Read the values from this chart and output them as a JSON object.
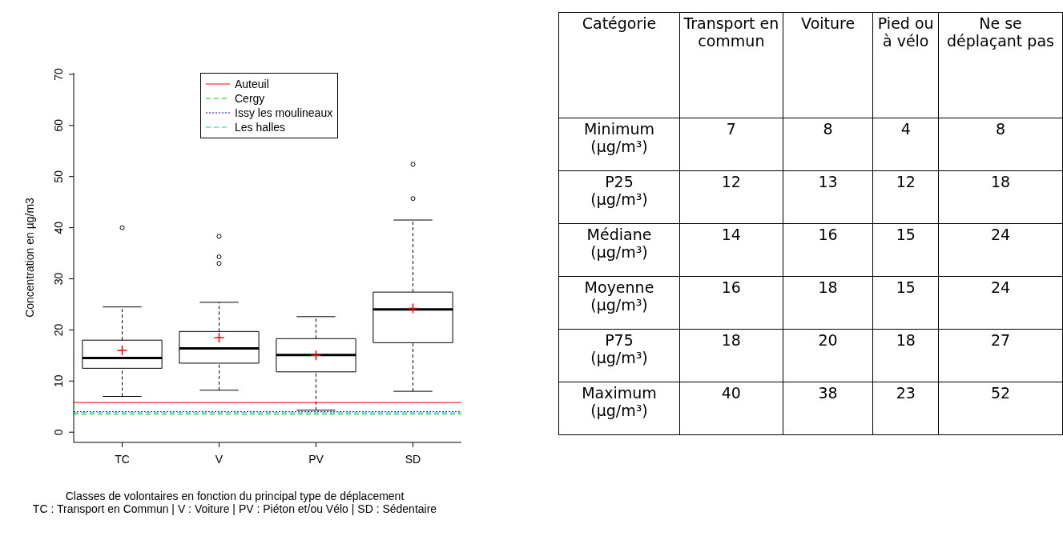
{
  "chart_data": [
    {
      "type": "box",
      "categories": [
        "TC",
        "V",
        "PV",
        "SD"
      ],
      "boxes": [
        {
          "low": 7,
          "q1": 12.5,
          "median": 14.5,
          "q3": 18,
          "high": 24.5,
          "mean": 16,
          "outliers": [
            40
          ]
        },
        {
          "low": 8.2,
          "q1": 13.5,
          "median": 16.4,
          "q3": 19.7,
          "high": 25.4,
          "mean": 18.5,
          "outliers": [
            33,
            34.3,
            38.3
          ]
        },
        {
          "low": 4.3,
          "q1": 11.8,
          "median": 15.1,
          "q3": 18.3,
          "high": 22.6,
          "mean": 15
        },
        {
          "low": 8,
          "q1": 17.5,
          "median": 24,
          "q3": 27.4,
          "high": 41.5,
          "mean": 24.2,
          "outliers": [
            45.7,
            52.4
          ]
        }
      ],
      "ylim": [
        -2,
        70.3
      ],
      "yticks": [
        0,
        10,
        20,
        30,
        40,
        50,
        60,
        70
      ],
      "ylabel": "Concentration en µg/m3",
      "xlabel": "Classes de volontaires en fonction du principal type de déplacement",
      "annotations": [
        "TC : Transport en Commun | V : Voiture | PV : Piéton et/ou Vélo | SD : Sédentaire"
      ],
      "ref_lines": [
        {
          "axis": "y",
          "value": 5.8,
          "label": "Auteuil",
          "color": "#ff0000",
          "line_style": "solid"
        },
        {
          "axis": "y",
          "value": 3.5,
          "label": "Cergy",
          "color": "#00cc00",
          "line_style": "dashed"
        },
        {
          "axis": "y",
          "value": 4.0,
          "label": "Issy les moulineaux",
          "color": "#0000ff",
          "line_style": "dotted"
        },
        {
          "axis": "y",
          "value": 3.8,
          "label": "Les halles",
          "color": "#00cccc",
          "line_style": "dashed"
        }
      ],
      "legend": "top"
    },
    {
      "type": "heatmap",
      "ylabel": "Catégorie",
      "data_labels": true,
      "categories": [
        "Transport en commun",
        "Voiture",
        "Pied ou à vélo",
        "Ne se déplaçant pas"
      ],
      "y_categories": [
        "Minimum (µg/m³)",
        "P25 (µg/m³)",
        "Médiane (µg/m³)",
        "Moyenne (µg/m³)",
        "P75 (µg/m³)",
        "Maximum (µg/m³)"
      ],
      "cells": [
        [
          7,
          8,
          4,
          8
        ],
        [
          12,
          13,
          12,
          18
        ],
        [
          14,
          16,
          15,
          24
        ],
        [
          16,
          18,
          15,
          24
        ],
        [
          18,
          20,
          18,
          27
        ],
        [
          40,
          38,
          23,
          52
        ]
      ]
    }
  ]
}
